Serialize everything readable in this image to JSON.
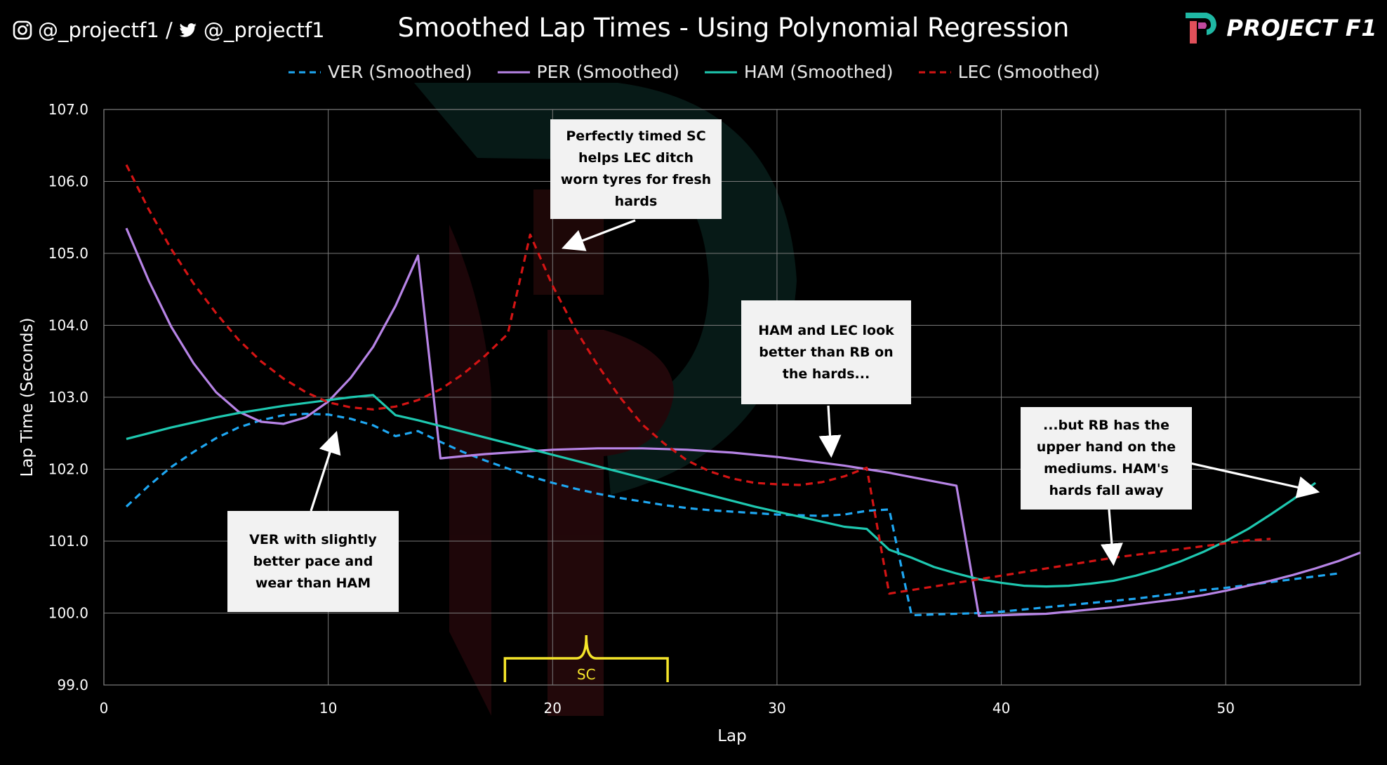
{
  "header": {
    "social_handle": "@_projectf1 /",
    "twitter_handle": "@_projectf1",
    "title": "Smoothed Lap Times - Using Polynomial Regression",
    "brand": "PROJECT F1",
    "icons": [
      "instagram-icon",
      "twitter-icon",
      "project-f1-logo"
    ]
  },
  "chart_data": {
    "type": "line",
    "title": "Smoothed Lap Times - Using Polynomial Regression",
    "xlabel": "Lap",
    "ylabel": "Lap Time (Seconds)",
    "xlim": [
      0,
      56
    ],
    "ylim": [
      99.0,
      107.0
    ],
    "x_ticks": [
      "0",
      "10",
      "20",
      "30",
      "40",
      "50"
    ],
    "y_ticks": [
      "99.0",
      "100.0",
      "101.0",
      "102.0",
      "103.0",
      "104.0",
      "105.0",
      "106.0",
      "107.0"
    ],
    "grid": true,
    "legend_position": "top",
    "series": [
      {
        "name": "VER (Smoothed)",
        "color": "#1ea7f2",
        "dash": true,
        "points": [
          [
            1,
            101.48
          ],
          [
            2,
            101.77
          ],
          [
            3,
            102.03
          ],
          [
            4,
            102.24
          ],
          [
            5,
            102.43
          ],
          [
            6,
            102.58
          ],
          [
            7,
            102.68
          ],
          [
            8,
            102.75
          ],
          [
            9,
            102.77
          ],
          [
            10,
            102.76
          ],
          [
            11,
            102.7
          ],
          [
            12,
            102.61
          ],
          [
            13,
            102.46
          ],
          [
            14,
            102.53
          ],
          [
            15,
            102.38
          ],
          [
            16,
            102.24
          ],
          [
            17,
            102.12
          ],
          [
            18,
            102.01
          ],
          [
            19,
            101.9
          ],
          [
            20,
            101.81
          ],
          [
            21,
            101.73
          ],
          [
            22,
            101.66
          ],
          [
            23,
            101.6
          ],
          [
            24,
            101.55
          ],
          [
            25,
            101.5
          ],
          [
            26,
            101.46
          ],
          [
            27,
            101.43
          ],
          [
            28,
            101.41
          ],
          [
            29,
            101.39
          ],
          [
            30,
            101.37
          ],
          [
            31,
            101.36
          ],
          [
            32,
            101.35
          ],
          [
            33,
            101.37
          ],
          [
            34,
            101.42
          ],
          [
            35,
            101.44
          ],
          [
            36,
            99.97
          ],
          [
            37,
            99.98
          ],
          [
            38,
            99.99
          ],
          [
            39,
            100.0
          ],
          [
            40,
            100.02
          ],
          [
            41,
            100.05
          ],
          [
            42,
            100.08
          ],
          [
            43,
            100.11
          ],
          [
            44,
            100.14
          ],
          [
            45,
            100.17
          ],
          [
            46,
            100.2
          ],
          [
            47,
            100.24
          ],
          [
            48,
            100.28
          ],
          [
            49,
            100.32
          ],
          [
            50,
            100.35
          ],
          [
            51,
            100.39
          ],
          [
            52,
            100.43
          ],
          [
            53,
            100.47
          ],
          [
            54,
            100.51
          ],
          [
            55,
            100.55
          ]
        ]
      },
      {
        "name": "PER (Smoothed)",
        "color": "#b784e6",
        "dash": false,
        "points": [
          [
            1,
            105.35
          ],
          [
            2,
            104.62
          ],
          [
            3,
            103.98
          ],
          [
            4,
            103.47
          ],
          [
            5,
            103.07
          ],
          [
            6,
            102.8
          ],
          [
            7,
            102.66
          ],
          [
            8,
            102.63
          ],
          [
            9,
            102.72
          ],
          [
            10,
            102.94
          ],
          [
            11,
            103.27
          ],
          [
            12,
            103.7
          ],
          [
            13,
            104.27
          ],
          [
            14,
            104.97
          ],
          [
            15,
            102.15
          ],
          [
            16,
            102.18
          ],
          [
            17,
            102.21
          ],
          [
            18,
            102.23
          ],
          [
            19,
            102.25
          ],
          [
            20,
            102.27
          ],
          [
            21,
            102.28
          ],
          [
            22,
            102.29
          ],
          [
            23,
            102.29
          ],
          [
            24,
            102.29
          ],
          [
            25,
            102.28
          ],
          [
            26,
            102.27
          ],
          [
            27,
            102.25
          ],
          [
            28,
            102.23
          ],
          [
            29,
            102.2
          ],
          [
            30,
            102.17
          ],
          [
            31,
            102.13
          ],
          [
            32,
            102.09
          ],
          [
            33,
            102.05
          ],
          [
            34,
            102.0
          ],
          [
            35,
            101.95
          ],
          [
            36,
            101.89
          ],
          [
            37,
            101.83
          ],
          [
            38,
            101.77
          ],
          [
            39,
            99.96
          ],
          [
            40,
            99.97
          ],
          [
            41,
            99.98
          ],
          [
            42,
            99.99
          ],
          [
            43,
            100.02
          ],
          [
            44,
            100.05
          ],
          [
            45,
            100.08
          ],
          [
            46,
            100.12
          ],
          [
            47,
            100.16
          ],
          [
            48,
            100.2
          ],
          [
            49,
            100.25
          ],
          [
            50,
            100.31
          ],
          [
            51,
            100.38
          ],
          [
            52,
            100.45
          ],
          [
            53,
            100.53
          ],
          [
            54,
            100.62
          ],
          [
            55,
            100.72
          ],
          [
            56,
            100.84
          ]
        ]
      },
      {
        "name": "HAM (Smoothed)",
        "color": "#1ec8b0",
        "dash": false,
        "points": [
          [
            1,
            102.42
          ],
          [
            2,
            102.5
          ],
          [
            3,
            102.58
          ],
          [
            4,
            102.65
          ],
          [
            5,
            102.72
          ],
          [
            6,
            102.78
          ],
          [
            7,
            102.83
          ],
          [
            8,
            102.88
          ],
          [
            9,
            102.92
          ],
          [
            10,
            102.96
          ],
          [
            11,
            103.0
          ],
          [
            12,
            103.03
          ],
          [
            13,
            102.75
          ],
          [
            14,
            102.68
          ],
          [
            15,
            102.6
          ],
          [
            16,
            102.52
          ],
          [
            17,
            102.44
          ],
          [
            18,
            102.36
          ],
          [
            19,
            102.28
          ],
          [
            20,
            102.2
          ],
          [
            21,
            102.12
          ],
          [
            22,
            102.04
          ],
          [
            23,
            101.96
          ],
          [
            24,
            101.88
          ],
          [
            25,
            101.8
          ],
          [
            26,
            101.72
          ],
          [
            27,
            101.64
          ],
          [
            28,
            101.56
          ],
          [
            29,
            101.48
          ],
          [
            30,
            101.41
          ],
          [
            31,
            101.34
          ],
          [
            32,
            101.27
          ],
          [
            33,
            101.2
          ],
          [
            34,
            101.17
          ],
          [
            35,
            100.88
          ],
          [
            36,
            100.77
          ],
          [
            37,
            100.64
          ],
          [
            38,
            100.55
          ],
          [
            39,
            100.47
          ],
          [
            40,
            100.42
          ],
          [
            41,
            100.38
          ],
          [
            42,
            100.37
          ],
          [
            43,
            100.38
          ],
          [
            44,
            100.41
          ],
          [
            45,
            100.45
          ],
          [
            46,
            100.52
          ],
          [
            47,
            100.61
          ],
          [
            48,
            100.72
          ],
          [
            49,
            100.85
          ],
          [
            50,
            101.0
          ],
          [
            51,
            101.17
          ],
          [
            52,
            101.37
          ],
          [
            53,
            101.58
          ],
          [
            54,
            101.81
          ]
        ]
      },
      {
        "name": "LEC (Smoothed)",
        "color": "#d41414",
        "dash": true,
        "points": [
          [
            1,
            106.23
          ],
          [
            2,
            105.61
          ],
          [
            3,
            105.06
          ],
          [
            4,
            104.58
          ],
          [
            5,
            104.17
          ],
          [
            6,
            103.8
          ],
          [
            7,
            103.5
          ],
          [
            8,
            103.26
          ],
          [
            9,
            103.07
          ],
          [
            10,
            102.93
          ],
          [
            11,
            102.86
          ],
          [
            12,
            102.83
          ],
          [
            13,
            102.87
          ],
          [
            14,
            102.96
          ],
          [
            15,
            103.11
          ],
          [
            16,
            103.32
          ],
          [
            17,
            103.58
          ],
          [
            18,
            103.88
          ],
          [
            19,
            105.26
          ],
          [
            20,
            104.55
          ],
          [
            21,
            103.95
          ],
          [
            22,
            103.45
          ],
          [
            23,
            103.0
          ],
          [
            24,
            102.62
          ],
          [
            25,
            102.35
          ],
          [
            26,
            102.12
          ],
          [
            27,
            101.97
          ],
          [
            28,
            101.87
          ],
          [
            29,
            101.81
          ],
          [
            30,
            101.79
          ],
          [
            31,
            101.78
          ],
          [
            32,
            101.82
          ],
          [
            33,
            101.9
          ],
          [
            34,
            102.02
          ],
          [
            35,
            100.27
          ],
          [
            36,
            100.32
          ],
          [
            37,
            100.37
          ],
          [
            38,
            100.42
          ],
          [
            39,
            100.47
          ],
          [
            40,
            100.52
          ],
          [
            41,
            100.57
          ],
          [
            42,
            100.62
          ],
          [
            43,
            100.67
          ],
          [
            44,
            100.72
          ],
          [
            45,
            100.77
          ],
          [
            46,
            100.81
          ],
          [
            47,
            100.85
          ],
          [
            48,
            100.89
          ],
          [
            49,
            100.93
          ],
          [
            50,
            100.97
          ],
          [
            51,
            101.01
          ],
          [
            52,
            101.03
          ]
        ]
      }
    ],
    "annotations": [
      {
        "text": "Perfectly timed SC helps LEC ditch worn tyres for fresh hards"
      },
      {
        "text": "HAM and LEC look better than RB on the hards..."
      },
      {
        "text": "...but RB has the upper hand on the mediums. HAM's hards fall away"
      },
      {
        "text": "VER with slightly better pace and wear than HAM"
      }
    ],
    "sc_marker": {
      "label": "SC",
      "lap_start": 18,
      "lap_end": 25,
      "color": "#f5e52a"
    }
  }
}
